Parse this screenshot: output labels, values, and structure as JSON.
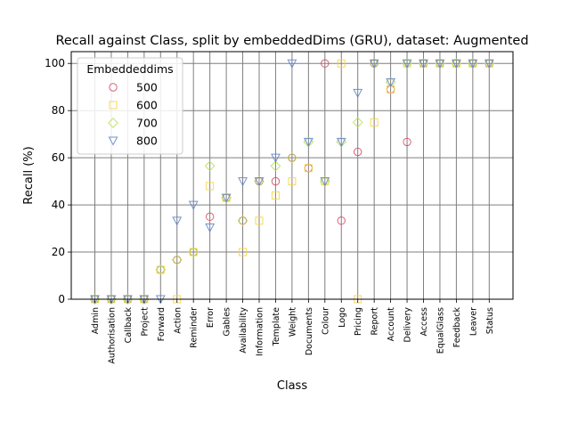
{
  "chart_data": {
    "type": "scatter",
    "title": "Recall against Class, split by embeddedDims (GRU), dataset: Augmented",
    "xlabel": "Class",
    "ylabel": "Recall (%)",
    "ylim": [
      0,
      105
    ],
    "yticks": [
      0,
      20,
      40,
      60,
      80,
      100
    ],
    "grid": true,
    "legend": {
      "title": "Embeddeddims",
      "placement": "upper-left"
    },
    "categories": [
      "Admin",
      "Authorisation",
      "Callback",
      "Project",
      "Forward",
      "Action",
      "Reminder",
      "Error",
      "Gables",
      "Availability",
      "Information",
      "Template",
      "Weight",
      "Documents",
      "Colour",
      "Logo",
      "Pricing",
      "Report",
      "Account",
      "Delivery",
      "Access",
      "EqualGlass",
      "Feedback",
      "Leaver",
      "Status"
    ],
    "series": [
      {
        "name": "500",
        "marker": "circle",
        "color": "#d1455f",
        "values": [
          0,
          0,
          0,
          0,
          12.5,
          16.7,
          20,
          35,
          43,
          33.3,
          50,
          50,
          60,
          55.6,
          100,
          33.3,
          62.5,
          100,
          89,
          66.7,
          100,
          100,
          100,
          100,
          100
        ]
      },
      {
        "name": "600",
        "marker": "square",
        "color": "#f5d43c",
        "values": [
          0,
          0,
          0,
          0,
          12.5,
          0,
          20,
          48,
          43,
          20,
          33.3,
          44,
          50,
          55.6,
          50,
          100,
          0,
          75,
          89,
          100,
          100,
          100,
          100,
          100,
          100
        ]
      },
      {
        "name": "700",
        "marker": "diamond",
        "color": "#b9dc55",
        "values": [
          0,
          0,
          0,
          0,
          12.5,
          16.7,
          20,
          56.5,
          43,
          33.3,
          50,
          56.5,
          60,
          66.7,
          50,
          66.7,
          75,
          100,
          92,
          100,
          100,
          100,
          100,
          100,
          100
        ]
      },
      {
        "name": "800",
        "marker": "triangle-down",
        "color": "#5a7fc8",
        "values": [
          0,
          0,
          0,
          0,
          0,
          33.3,
          40,
          30.4,
          43,
          50,
          50,
          60,
          100,
          66.7,
          50,
          66.7,
          87.5,
          100,
          92,
          100,
          100,
          100,
          100,
          100,
          100
        ]
      }
    ]
  }
}
